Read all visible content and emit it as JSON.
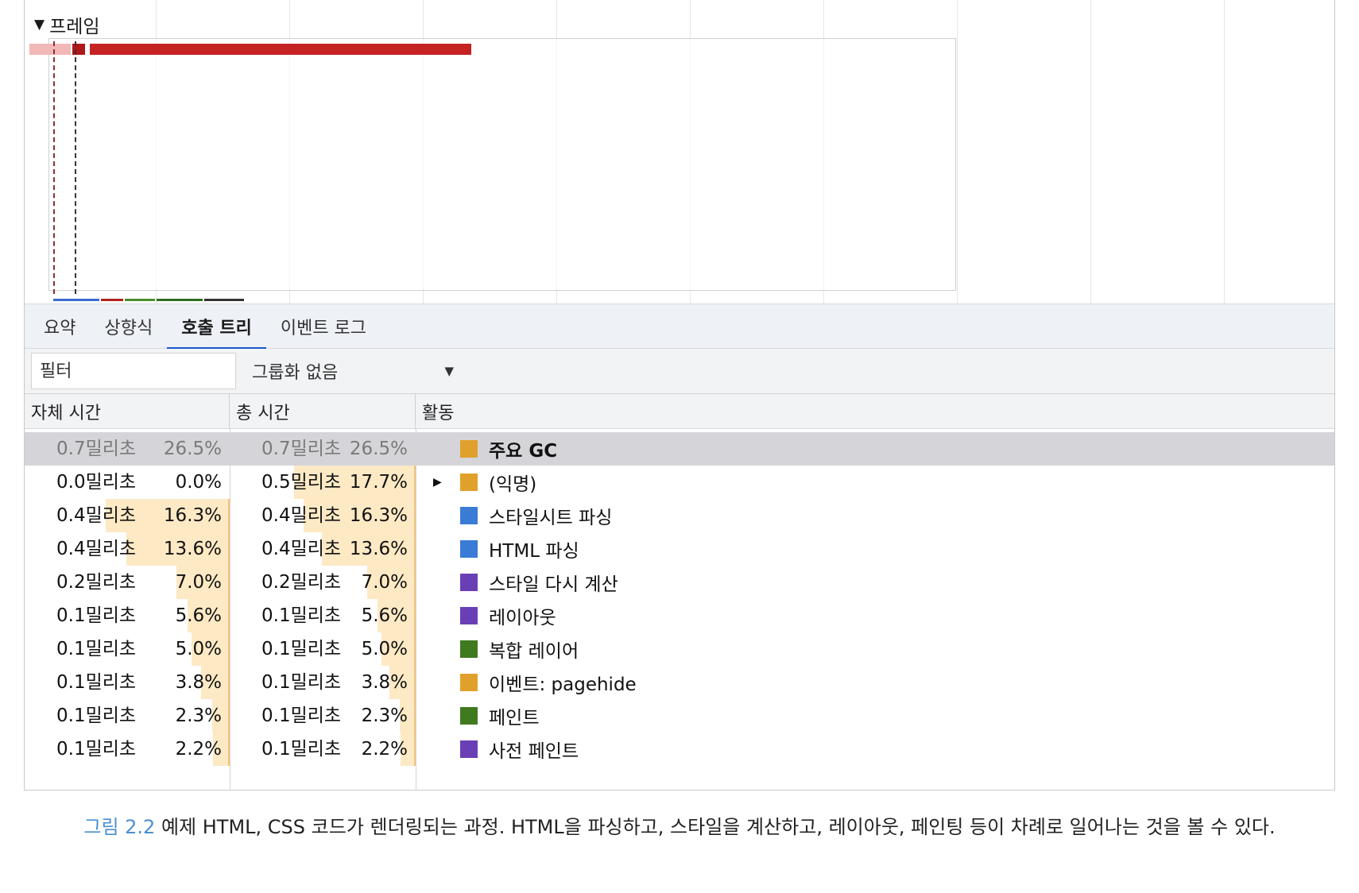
{
  "frames": {
    "title": "프레임"
  },
  "tabs": [
    {
      "label": "요약",
      "active": false
    },
    {
      "label": "상향식",
      "active": false
    },
    {
      "label": "호출 트리",
      "active": true
    },
    {
      "label": "이벤트 로그",
      "active": false
    }
  ],
  "toolbar": {
    "filter_placeholder": "필터",
    "grouping": "그룹화 없음"
  },
  "table": {
    "headers": {
      "self_time": "자체 시간",
      "total_time": "총 시간",
      "activity": "활동"
    },
    "rows": [
      {
        "self_ms": "0.7밀리초",
        "self_pct": "26.5%",
        "self_frac": 0.265,
        "total_ms": "0.7밀리초",
        "total_pct": "26.5%",
        "total_frac": 0.265,
        "activity": "주요 GC",
        "color": "#e0a02c",
        "expandable": false,
        "selected": true
      },
      {
        "self_ms": "0.0밀리초",
        "self_pct": "0.0%",
        "self_frac": 0.0,
        "total_ms": "0.5밀리초",
        "total_pct": "17.7%",
        "total_frac": 0.177,
        "activity": "(익명)",
        "color": "#e0a02c",
        "expandable": true,
        "selected": false
      },
      {
        "self_ms": "0.4밀리초",
        "self_pct": "16.3%",
        "self_frac": 0.163,
        "total_ms": "0.4밀리초",
        "total_pct": "16.3%",
        "total_frac": 0.163,
        "activity": "스타일시트 파싱",
        "color": "#3a7bd5",
        "expandable": false,
        "selected": false
      },
      {
        "self_ms": "0.4밀리초",
        "self_pct": "13.6%",
        "self_frac": 0.136,
        "total_ms": "0.4밀리초",
        "total_pct": "13.6%",
        "total_frac": 0.136,
        "activity": "HTML 파싱",
        "color": "#3a7bd5",
        "expandable": false,
        "selected": false
      },
      {
        "self_ms": "0.2밀리초",
        "self_pct": "7.0%",
        "self_frac": 0.07,
        "total_ms": "0.2밀리초",
        "total_pct": "7.0%",
        "total_frac": 0.07,
        "activity": "스타일 다시 계산",
        "color": "#6a3fb5",
        "expandable": false,
        "selected": false
      },
      {
        "self_ms": "0.1밀리초",
        "self_pct": "5.6%",
        "self_frac": 0.056,
        "total_ms": "0.1밀리초",
        "total_pct": "5.6%",
        "total_frac": 0.056,
        "activity": "레이아웃",
        "color": "#6a3fb5",
        "expandable": false,
        "selected": false
      },
      {
        "self_ms": "0.1밀리초",
        "self_pct": "5.0%",
        "self_frac": 0.05,
        "total_ms": "0.1밀리초",
        "total_pct": "5.0%",
        "total_frac": 0.05,
        "activity": "복합 레이어",
        "color": "#3f7a1f",
        "expandable": false,
        "selected": false
      },
      {
        "self_ms": "0.1밀리초",
        "self_pct": "3.8%",
        "self_frac": 0.038,
        "total_ms": "0.1밀리초",
        "total_pct": "3.8%",
        "total_frac": 0.038,
        "activity": "이벤트: pagehide",
        "color": "#e0a02c",
        "expandable": false,
        "selected": false
      },
      {
        "self_ms": "0.1밀리초",
        "self_pct": "2.3%",
        "self_frac": 0.023,
        "total_ms": "0.1밀리초",
        "total_pct": "2.3%",
        "total_frac": 0.023,
        "activity": "페인트",
        "color": "#3f7a1f",
        "expandable": false,
        "selected": false
      },
      {
        "self_ms": "0.1밀리초",
        "self_pct": "2.2%",
        "self_frac": 0.022,
        "total_ms": "0.1밀리초",
        "total_pct": "2.2%",
        "total_frac": 0.022,
        "activity": "사전 페인트",
        "color": "#6a3fb5",
        "expandable": false,
        "selected": false
      }
    ]
  },
  "caption": {
    "figure_label": "그림 2.2",
    "text": " 예제 HTML, CSS 코드가 렌더링되는 과정. HTML을 파싱하고, 스타일을 계산하고, 레이아웃, 페인팅 등이 차례로 일어나는 것을 볼 수 있다."
  }
}
